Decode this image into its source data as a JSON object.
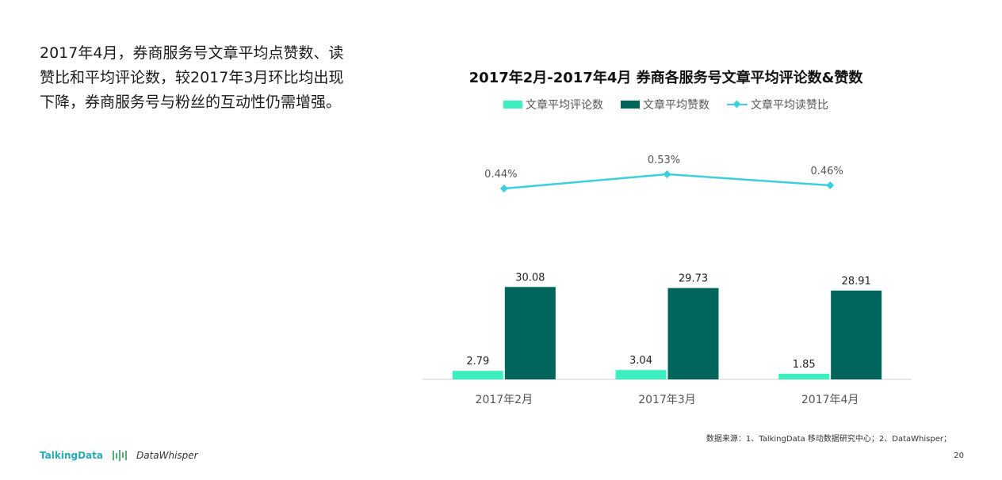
{
  "lead_text": "2017年4月，券商服务号文章平均点赞数、读赞比和平均评论数，较2017年3月环比均出现下降，券商服务号与粉丝的互动性仍需增强。",
  "chart_data": {
    "type": "bar",
    "title": "2017年2月-2017年4月 券商各服务号文章平均评论数&赞数",
    "categories": [
      "2017年2月",
      "2017年3月",
      "2017年4月"
    ],
    "series": [
      {
        "name": "文章平均评论数",
        "kind": "bar",
        "color": "#3cefc1",
        "values": [
          2.79,
          3.04,
          1.85
        ],
        "labels": [
          "2.79",
          "3.04",
          "1.85"
        ]
      },
      {
        "name": "文章平均赞数",
        "kind": "bar",
        "color": "#00665c",
        "values": [
          30.08,
          29.73,
          28.91
        ],
        "labels": [
          "30.08",
          "29.73",
          "28.91"
        ]
      },
      {
        "name": "文章平均读赞比",
        "kind": "line",
        "color": "#3ccfdc",
        "values": [
          0.44,
          0.53,
          0.46
        ],
        "labels": [
          "0.44%",
          "0.53%",
          "0.46%"
        ],
        "unit": "%"
      }
    ],
    "bar_ylim": [
      0,
      40
    ],
    "line_ylim": [
      0,
      1
    ],
    "grid": false,
    "legend_position": "top"
  },
  "footer": {
    "source": "数据来源：1、TalkingData 移动数据研究中心；2、DataWhisper；",
    "brand_1": "TalkingData",
    "brand_2": "DataWhisper",
    "page_number": "20"
  }
}
